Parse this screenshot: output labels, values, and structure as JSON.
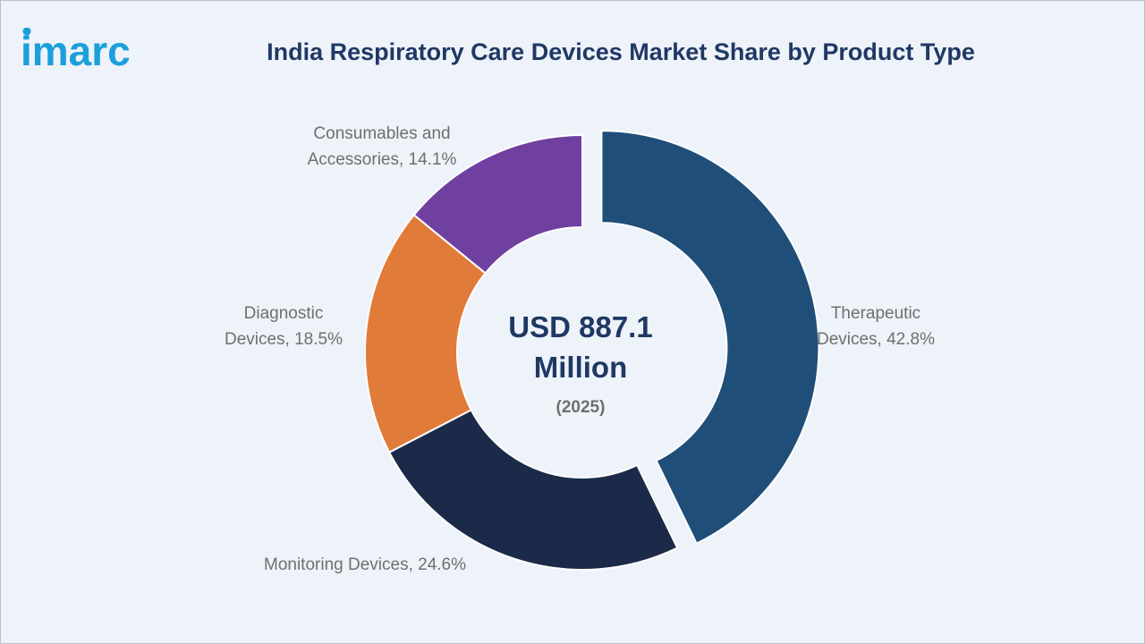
{
  "brand": {
    "logo_text": "imarc",
    "logo_color": "#1ba0db"
  },
  "title": "India Respiratory Care Devices Market Share by Product Type",
  "center": {
    "line1": "USD 887.1",
    "line2": "Million",
    "year": "(2025)"
  },
  "chart_data": {
    "type": "pie",
    "style": "donut",
    "title": "India Respiratory Care Devices Market Share by Product Type",
    "unit": "%",
    "slices": [
      {
        "label": "Therapeutic Devices",
        "value": 42.8,
        "color": "#1f4e79",
        "exploded": true,
        "label_lines": [
          "Therapeutic",
          "Devices, 42.8%"
        ]
      },
      {
        "label": "Monitoring Devices",
        "value": 24.6,
        "color": "#1c2a4a",
        "exploded": false,
        "label_lines": [
          "Monitoring Devices, 24.6%"
        ]
      },
      {
        "label": "Diagnostic Devices",
        "value": 18.5,
        "color": "#e07b39",
        "exploded": false,
        "label_lines": [
          "Diagnostic",
          "Devices, 18.5%"
        ]
      },
      {
        "label": "Consumables and Accessories",
        "value": 14.1,
        "color": "#7040a0",
        "exploded": false,
        "label_lines": [
          "Consumables and",
          "Accessories, 14.1%"
        ]
      }
    ]
  }
}
